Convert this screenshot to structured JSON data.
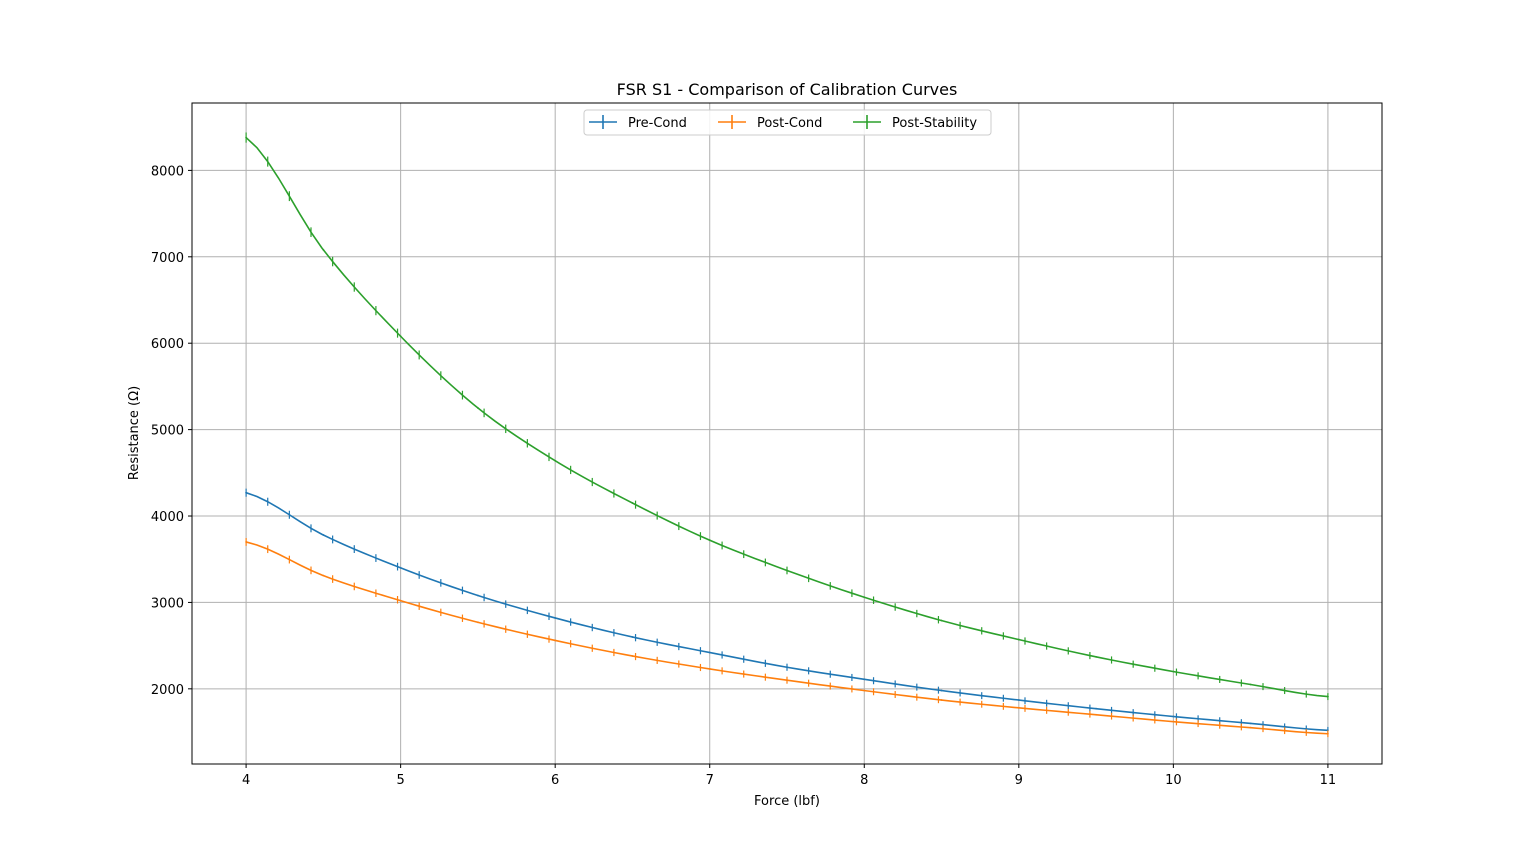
{
  "chart_data": {
    "type": "line",
    "title": "FSR S1 - Comparison of Calibration Curves",
    "xlabel": "Force (lbf)",
    "ylabel": "Resistance (Ω)",
    "xlim": [
      3.65,
      11.35
    ],
    "ylim": [
      1130,
      8780
    ],
    "xticks": [
      4,
      5,
      6,
      7,
      8,
      9,
      10,
      11
    ],
    "yticks": [
      2000,
      3000,
      4000,
      5000,
      6000,
      7000,
      8000
    ],
    "grid": true,
    "legend_position": "top-center",
    "error_bars": true,
    "x": [
      4,
      4.5,
      5,
      5.5,
      6,
      6.5,
      7,
      7.5,
      8,
      8.5,
      9,
      9.5,
      10,
      10.5,
      11
    ],
    "series": [
      {
        "name": "Pre-Cond",
        "color": "#1f77b4",
        "values": [
          4270,
          3780,
          3400,
          3080,
          2820,
          2600,
          2420,
          2250,
          2110,
          1980,
          1870,
          1770,
          1680,
          1600,
          1520
        ]
      },
      {
        "name": "Post-Cond",
        "color": "#ff7f0e",
        "values": [
          3700,
          3310,
          3020,
          2770,
          2560,
          2380,
          2230,
          2100,
          1980,
          1870,
          1780,
          1700,
          1620,
          1550,
          1480
        ]
      },
      {
        "name": "Post-Stability",
        "color": "#2ca02c",
        "values": [
          8380,
          7080,
          6080,
          5250,
          4640,
          4150,
          3720,
          3370,
          3060,
          2790,
          2570,
          2370,
          2200,
          2050,
          1910
        ]
      }
    ]
  }
}
